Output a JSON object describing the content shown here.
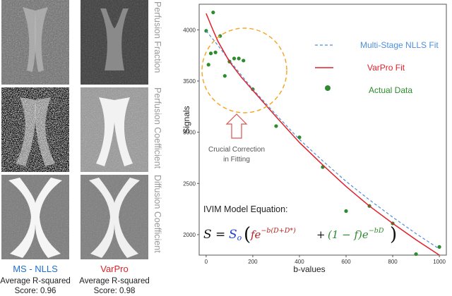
{
  "panels": {
    "row_labels": [
      "Perfusion Fraction",
      "Perfusion Coefficient",
      "Diffusion Coefficient"
    ],
    "methods": [
      {
        "name": "MS - NLLS",
        "score_label": "Average R-squared",
        "score": "Score: 0.96",
        "color": "#1f6fd1"
      },
      {
        "name": "VarPro",
        "score_label": "Average R-squared",
        "score": "Score: 0.98",
        "color": "#e0202a"
      }
    ]
  },
  "annotation": {
    "text_line1": "Crucial Correction",
    "text_line2": "in Fitting",
    "circle_color": "#f4a320",
    "arrow_color": "#d9534f"
  },
  "equation": {
    "title": "IVIM Model Equation:"
  },
  "chart_data": {
    "type": "scatter",
    "xlabel": "b-values",
    "ylabel": "Signals",
    "xlim": [
      -30,
      1030
    ],
    "ylim": [
      1800,
      4250
    ],
    "xticks": [
      0,
      200,
      400,
      600,
      800,
      1000
    ],
    "yticks": [
      2000,
      2500,
      3000,
      3500,
      4000
    ],
    "series": [
      {
        "name": "Actual Data",
        "kind": "points",
        "color": "#2e8b2e",
        "x": [
          0,
          10,
          20,
          30,
          40,
          60,
          80,
          100,
          120,
          140,
          160,
          200,
          300,
          400,
          500,
          600,
          700,
          800,
          900,
          1000
        ],
        "y": [
          3990,
          3660,
          3770,
          4170,
          3780,
          3940,
          3550,
          3690,
          3720,
          3720,
          3700,
          3420,
          3060,
          2950,
          2660,
          2230,
          2280,
          2110,
          1810,
          1880
        ]
      },
      {
        "name": "Multi-Stage NLLS Fit",
        "kind": "dashed",
        "color": "#4f8fd9",
        "x": [
          0,
          50,
          100,
          150,
          200,
          300,
          400,
          500,
          600,
          700,
          800,
          900,
          1000
        ],
        "y": [
          3990,
          3850,
          3700,
          3560,
          3420,
          3170,
          2930,
          2720,
          2520,
          2340,
          2170,
          2010,
          1860
        ]
      },
      {
        "name": "VarPro Fit",
        "kind": "solid",
        "color": "#e0202a",
        "x": [
          0,
          25,
          50,
          100,
          150,
          200,
          300,
          400,
          500,
          600,
          700,
          800,
          900,
          1000
        ],
        "y": [
          4160,
          4020,
          3890,
          3690,
          3540,
          3410,
          3150,
          2900,
          2680,
          2470,
          2280,
          2110,
          1950,
          1800
        ]
      }
    ]
  }
}
